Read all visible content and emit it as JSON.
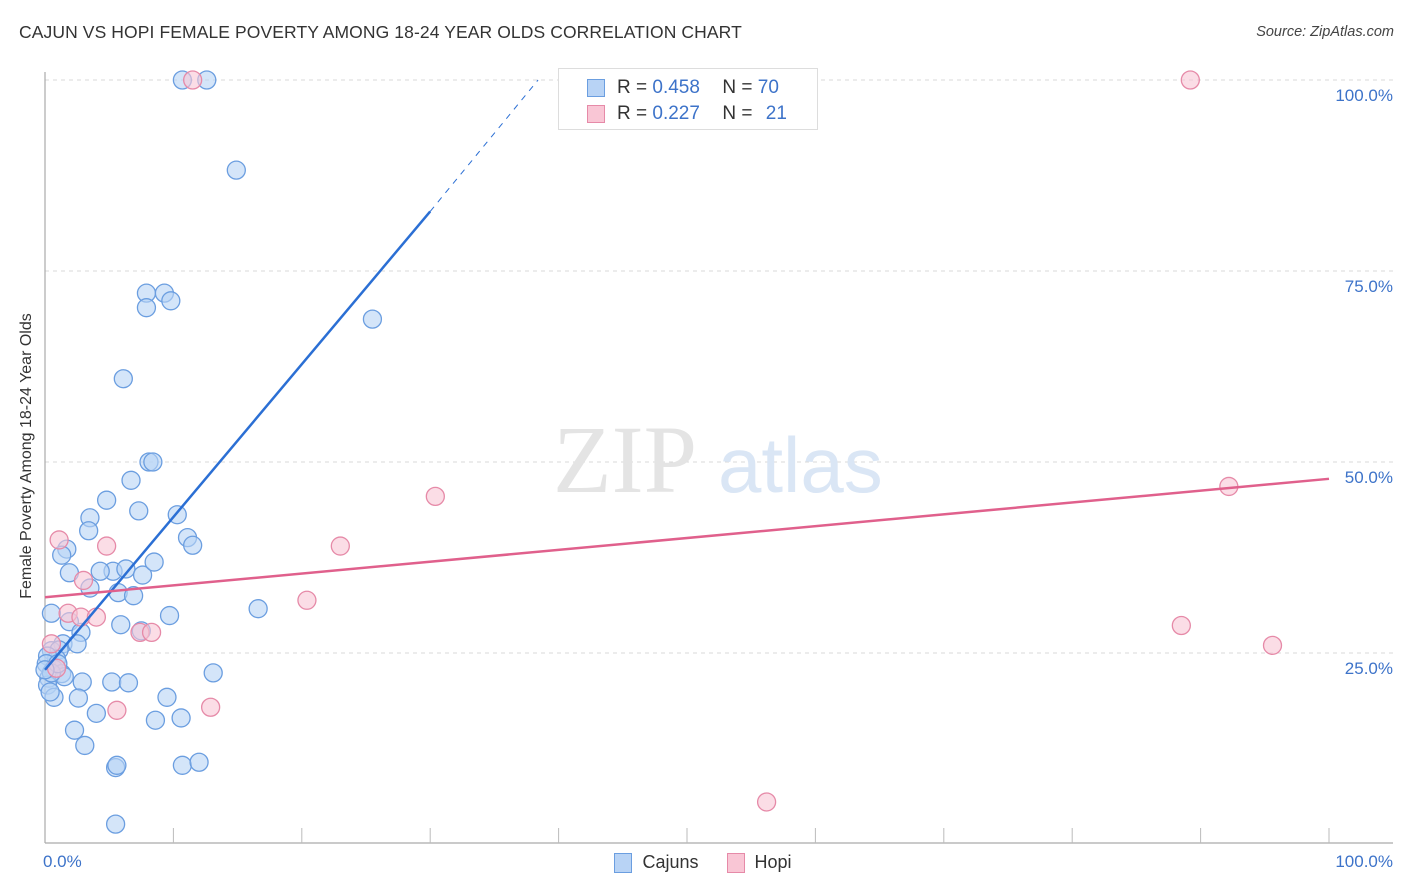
{
  "header": {
    "title": "CAJUN VS HOPI FEMALE POVERTY AMONG 18-24 YEAR OLDS CORRELATION CHART",
    "source": "Source: ZipAtlas.com"
  },
  "watermark": {
    "zip": "ZIP",
    "atlas": "atlas"
  },
  "colors": {
    "cajuns_fill": "#b8d3f5",
    "cajuns_stroke": "#6b9ee0",
    "cajuns_line": "#2b6fd4",
    "hopi_fill": "#f9c6d5",
    "hopi_stroke": "#e68aa8",
    "hopi_line": "#e0608c",
    "tick_label": "#3d73c9",
    "grid": "#d8d8d8"
  },
  "stats": [
    {
      "r_label": "R = ",
      "r_value": "0.458",
      "n_label": "N = ",
      "n_value": "70"
    },
    {
      "r_label": "R = ",
      "r_value": "0.227",
      "n_label": "N = ",
      "n_value": "21"
    }
  ],
  "legend": [
    {
      "label": "Cajuns"
    },
    {
      "label": "Hopi"
    }
  ],
  "chart_data": {
    "type": "scatter",
    "title": "CAJUN VS HOPI FEMALE POVERTY AMONG 18-24 YEAR OLDS CORRELATION CHART",
    "xlabel": "",
    "ylabel": "Female Poverty Among 18-24 Year Olds",
    "xlim": [
      0,
      100
    ],
    "ylim": [
      0,
      100
    ],
    "x_tick_labels": [
      "0.0%",
      "100.0%"
    ],
    "y_tick_labels": [
      "100.0%",
      "75.0%",
      "50.0%",
      "25.0%"
    ],
    "y_ticks": [
      100,
      75,
      50,
      25
    ],
    "grid": true,
    "legend_position": "bottom",
    "series": [
      {
        "name": "Cajuns",
        "R": 0.458,
        "N": 70,
        "trendline": {
          "x": [
            0,
            30,
            38.4
          ],
          "y": [
            22.8,
            82.8,
            100
          ],
          "solid_until_x": 30
        },
        "points": [
          [
            10.7,
            100
          ],
          [
            12.6,
            100
          ],
          [
            14.9,
            88.2
          ],
          [
            7.9,
            72.1
          ],
          [
            9.3,
            72.1
          ],
          [
            7.9,
            70.2
          ],
          [
            9.8,
            71.1
          ],
          [
            25.5,
            68.7
          ],
          [
            6.1,
            60.9
          ],
          [
            8.1,
            50.0
          ],
          [
            8.4,
            50.0
          ],
          [
            6.7,
            47.6
          ],
          [
            4.8,
            45.0
          ],
          [
            7.3,
            43.6
          ],
          [
            3.5,
            42.7
          ],
          [
            10.3,
            43.1
          ],
          [
            3.4,
            41.0
          ],
          [
            11.1,
            40.1
          ],
          [
            11.5,
            39.1
          ],
          [
            1.7,
            38.6
          ],
          [
            1.3,
            37.8
          ],
          [
            1.9,
            35.5
          ],
          [
            5.3,
            35.7
          ],
          [
            6.3,
            36.0
          ],
          [
            4.3,
            35.7
          ],
          [
            7.6,
            35.2
          ],
          [
            8.5,
            36.9
          ],
          [
            3.5,
            33.5
          ],
          [
            5.7,
            32.9
          ],
          [
            6.9,
            32.5
          ],
          [
            0.5,
            30.2
          ],
          [
            16.6,
            30.8
          ],
          [
            9.7,
            29.9
          ],
          [
            1.9,
            29.1
          ],
          [
            5.9,
            28.7
          ],
          [
            2.8,
            27.7
          ],
          [
            7.5,
            27.9
          ],
          [
            1.4,
            26.2
          ],
          [
            2.5,
            26.2
          ],
          [
            0.5,
            25.3
          ],
          [
            1.1,
            25.4
          ],
          [
            0.9,
            24.2
          ],
          [
            0.2,
            24.6
          ],
          [
            0.1,
            23.6
          ],
          [
            0.7,
            22.9
          ],
          [
            1.3,
            22.3
          ],
          [
            0.3,
            21.7
          ],
          [
            0.2,
            20.8
          ],
          [
            1.5,
            21.9
          ],
          [
            2.9,
            21.2
          ],
          [
            5.2,
            21.2
          ],
          [
            6.5,
            21.1
          ],
          [
            13.1,
            22.4
          ],
          [
            0.7,
            19.2
          ],
          [
            9.5,
            19.2
          ],
          [
            2.6,
            19.1
          ],
          [
            4.0,
            17.1
          ],
          [
            8.6,
            16.2
          ],
          [
            10.6,
            16.5
          ],
          [
            2.3,
            14.9
          ],
          [
            3.1,
            12.9
          ],
          [
            5.5,
            10.0
          ],
          [
            5.6,
            10.3
          ],
          [
            10.7,
            10.3
          ],
          [
            12.0,
            10.7
          ],
          [
            5.5,
            2.6
          ],
          [
            0.5,
            22.4
          ],
          [
            1.0,
            23.6
          ],
          [
            0.0,
            22.8
          ],
          [
            0.4,
            19.9
          ]
        ]
      },
      {
        "name": "Hopi",
        "R": 0.227,
        "N": 21,
        "trendline": {
          "x": [
            0,
            100
          ],
          "y": [
            32.3,
            47.8
          ]
        },
        "points": [
          [
            11.5,
            100
          ],
          [
            89.2,
            100
          ],
          [
            30.4,
            45.5
          ],
          [
            92.2,
            46.8
          ],
          [
            23.0,
            39.0
          ],
          [
            1.1,
            39.8
          ],
          [
            4.8,
            39.0
          ],
          [
            3.0,
            34.5
          ],
          [
            1.8,
            30.2
          ],
          [
            2.8,
            29.7
          ],
          [
            4.0,
            29.7
          ],
          [
            20.4,
            31.9
          ],
          [
            7.4,
            27.7
          ],
          [
            8.3,
            27.7
          ],
          [
            88.5,
            28.6
          ],
          [
            95.6,
            26.0
          ],
          [
            0.5,
            26.2
          ],
          [
            0.9,
            23.0
          ],
          [
            5.6,
            17.5
          ],
          [
            12.9,
            17.9
          ],
          [
            56.2,
            5.5
          ]
        ]
      }
    ]
  }
}
